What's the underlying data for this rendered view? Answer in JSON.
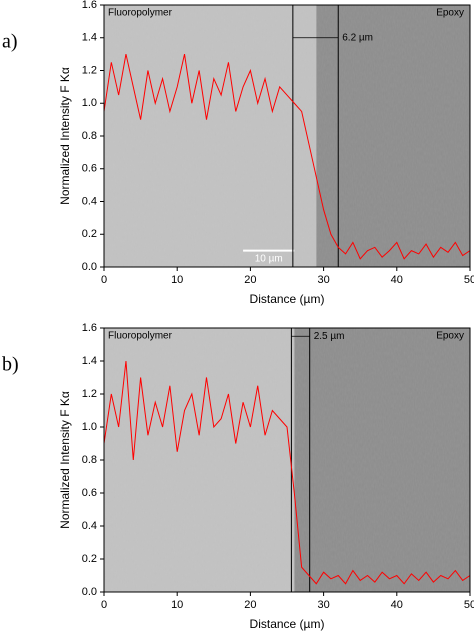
{
  "chart_data": [
    {
      "type": "line",
      "panel_label": "a)",
      "xlabel": "Distance (µm)",
      "ylabel": "Normalized Intensity F Kα",
      "xlim": [
        0,
        50
      ],
      "xticks": [
        0,
        10,
        20,
        30,
        40,
        50
      ],
      "ylim": [
        0,
        1.6
      ],
      "yticks": [
        {
          "value": 0,
          "label": "0.0"
        },
        0.2,
        0.4,
        0.6,
        0.8,
        {
          "value": 1,
          "label": "1.0"
        },
        1.2,
        1.4,
        1.6
      ],
      "regions": [
        {
          "name": "Fluoropolymer",
          "x": [
            0,
            29
          ]
        },
        {
          "name": "Epoxy",
          "x": [
            29,
            50
          ]
        }
      ],
      "annotation": {
        "text": "6.2 µm",
        "x": [
          25.8,
          32
        ],
        "y": 1.4
      },
      "scale_bar": {
        "label": "10 µm"
      },
      "x": [
        0,
        1,
        2,
        3,
        4,
        5,
        6,
        7,
        8,
        9,
        10,
        11,
        12,
        13,
        14,
        15,
        16,
        17,
        18,
        19,
        20,
        21,
        22,
        23,
        24,
        25,
        26,
        27,
        28,
        29,
        30,
        31,
        32,
        33,
        34,
        35,
        36,
        37,
        38,
        39,
        40,
        41,
        42,
        43,
        44,
        45,
        46,
        47,
        48,
        49,
        50
      ],
      "series": [
        {
          "color": "#ff0000",
          "values": [
            0.95,
            1.25,
            1.05,
            1.3,
            1.1,
            0.9,
            1.2,
            1.0,
            1.15,
            0.95,
            1.1,
            1.3,
            1.0,
            1.2,
            0.9,
            1.15,
            1.05,
            1.25,
            0.95,
            1.1,
            1.2,
            1.0,
            1.15,
            0.95,
            1.1,
            1.05,
            1.0,
            0.95,
            0.75,
            0.55,
            0.35,
            0.2,
            0.12,
            0.08,
            0.15,
            0.05,
            0.1,
            0.12,
            0.06,
            0.1,
            0.15,
            0.05,
            0.1,
            0.08,
            0.14,
            0.06,
            0.12,
            0.09,
            0.15,
            0.07,
            0.1
          ]
        }
      ]
    },
    {
      "type": "line",
      "panel_label": "b)",
      "xlabel": "Distance (µm)",
      "ylabel": "Normalized Intensity F Kα",
      "xlim": [
        0,
        50
      ],
      "xticks": [
        0,
        10,
        20,
        30,
        40,
        50
      ],
      "ylim": [
        0,
        1.6
      ],
      "yticks": [
        {
          "value": 0,
          "label": "0.0"
        },
        0.2,
        0.4,
        0.6,
        0.8,
        {
          "value": 1,
          "label": "1.0"
        },
        1.2,
        1.4,
        1.6
      ],
      "regions": [
        {
          "name": "Fluoropolymer",
          "x": [
            0,
            26
          ]
        },
        {
          "name": "Epoxy",
          "x": [
            26,
            50
          ]
        }
      ],
      "annotation": {
        "text": "2.5 µm",
        "x": [
          25.6,
          28.1
        ],
        "y": 1.55
      },
      "x": [
        0,
        1,
        2,
        3,
        4,
        5,
        6,
        7,
        8,
        9,
        10,
        11,
        12,
        13,
        14,
        15,
        16,
        17,
        18,
        19,
        20,
        21,
        22,
        23,
        24,
        25,
        26,
        27,
        28,
        29,
        30,
        31,
        32,
        33,
        34,
        35,
        36,
        37,
        38,
        39,
        40,
        41,
        42,
        43,
        44,
        45,
        46,
        47,
        48,
        49,
        50
      ],
      "series": [
        {
          "color": "#ff0000",
          "values": [
            0.9,
            1.2,
            1.0,
            1.4,
            0.8,
            1.3,
            0.95,
            1.15,
            1.0,
            1.25,
            0.85,
            1.1,
            1.2,
            0.95,
            1.3,
            1.0,
            1.05,
            1.2,
            0.9,
            1.15,
            1.0,
            1.25,
            0.95,
            1.1,
            1.05,
            1.0,
            0.6,
            0.15,
            0.1,
            0.05,
            0.12,
            0.08,
            0.1,
            0.05,
            0.13,
            0.07,
            0.1,
            0.06,
            0.12,
            0.08,
            0.1,
            0.05,
            0.11,
            0.07,
            0.12,
            0.06,
            0.1,
            0.08,
            0.13,
            0.07,
            0.1
          ]
        }
      ]
    }
  ]
}
